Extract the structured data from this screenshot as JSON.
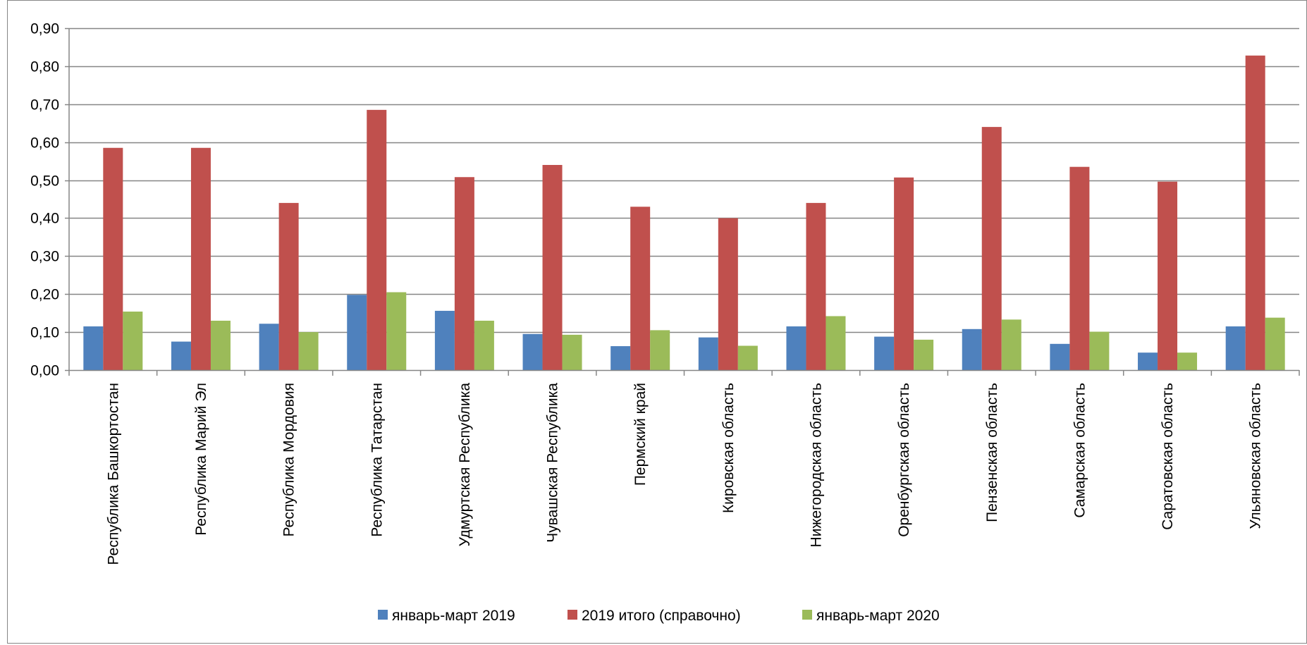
{
  "chart_data": {
    "type": "bar",
    "categories": [
      "Республика Башкортостан",
      "Республика Марий Эл",
      "Республика Мордовия",
      "Республика Татарстан",
      "Удмуртская Республика",
      "Чувашская Республика",
      "Пермский край",
      "Кировская область",
      "Нижегородская область",
      "Оренбургская область",
      "Пензенская область",
      "Самарская область",
      "Саратовская область",
      "Ульяновская область"
    ],
    "series": [
      {
        "name": "январь-март 2019",
        "color": "#4F81BD",
        "values": [
          0.115,
          0.075,
          0.122,
          0.198,
          0.156,
          0.095,
          0.063,
          0.086,
          0.115,
          0.088,
          0.108,
          0.069,
          0.046,
          0.115
        ]
      },
      {
        "name": "2019 итого (справочно)",
        "color": "#C0504D",
        "values": [
          0.585,
          0.585,
          0.44,
          0.685,
          0.508,
          0.54,
          0.43,
          0.4,
          0.44,
          0.507,
          0.64,
          0.535,
          0.496,
          0.828
        ]
      },
      {
        "name": "январь-март 2020",
        "color": "#9BBB59",
        "values": [
          0.154,
          0.13,
          0.1,
          0.205,
          0.13,
          0.093,
          0.105,
          0.064,
          0.142,
          0.08,
          0.133,
          0.101,
          0.046,
          0.138
        ]
      }
    ],
    "title": "",
    "xlabel": "",
    "ylabel": "",
    "ylim": [
      0,
      0.9
    ],
    "yticks": [
      "0,00",
      "0,10",
      "0,20",
      "0,30",
      "0,40",
      "0,50",
      "0,60",
      "0,70",
      "0,80",
      "0,90"
    ],
    "ytick_values": [
      0,
      0.1,
      0.2,
      0.3,
      0.4,
      0.5,
      0.6,
      0.7,
      0.8,
      0.9
    ],
    "grid": true,
    "legend_position": "bottom"
  },
  "colors": {
    "gridline": "#868686",
    "axis": "#868686",
    "frame": "#868686"
  }
}
